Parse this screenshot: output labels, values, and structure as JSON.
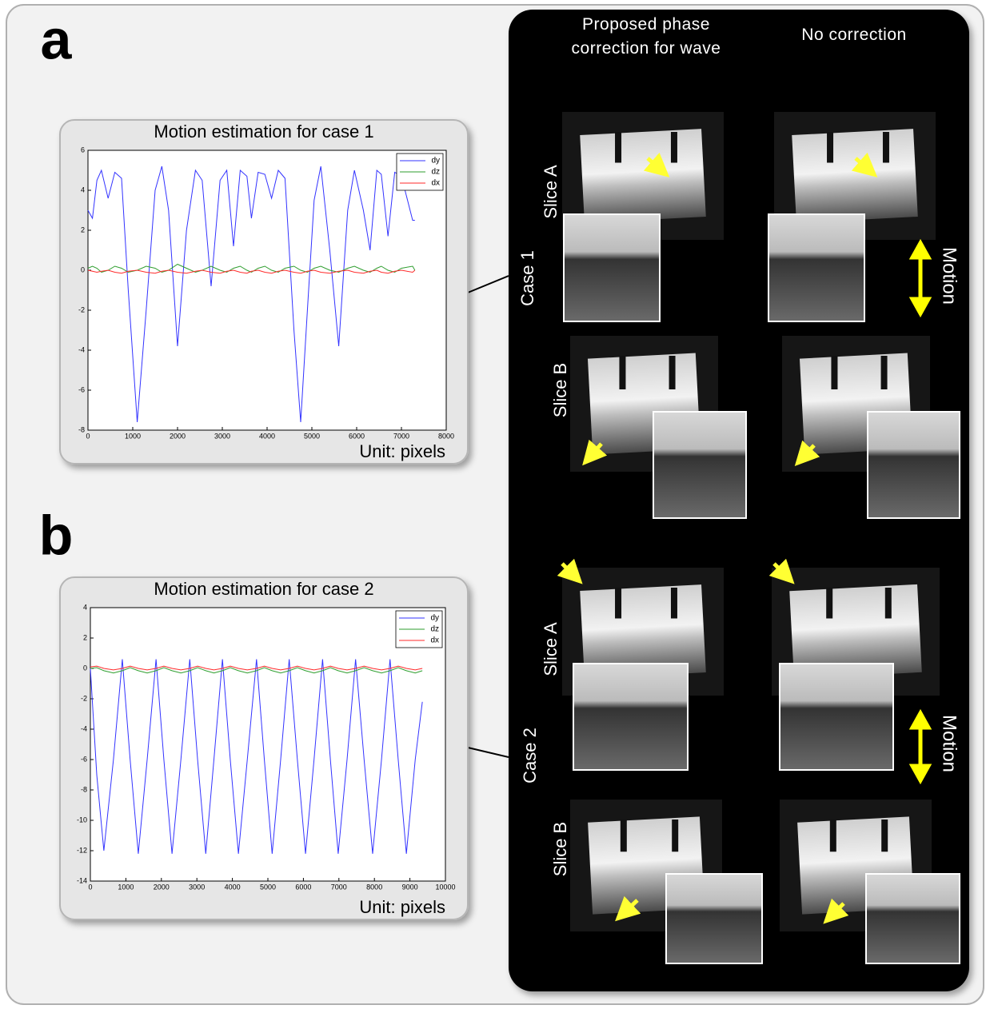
{
  "panel_labels": [
    "a",
    "b"
  ],
  "images": {
    "columns": [
      "Proposed phase correction for wave",
      "No correction"
    ],
    "cases": [
      {
        "label": "Case 1",
        "slices": [
          "Slice A",
          "Slice B"
        ],
        "motion": "Motion"
      },
      {
        "label": "Case 2",
        "slices": [
          "Slice A",
          "Slice B"
        ],
        "motion": "Motion"
      }
    ]
  },
  "chart_data": [
    {
      "type": "line",
      "title": "Motion estimation for case 1",
      "x_label": "Unit: pixels",
      "x": [
        0,
        100,
        200,
        300,
        450,
        600,
        750,
        900,
        1100,
        1300,
        1500,
        1650,
        1800,
        2000,
        2200,
        2400,
        2550,
        2750,
        2950,
        3100,
        3250,
        3400,
        3550,
        3650,
        3800,
        3950,
        4100,
        4250,
        4400,
        4600,
        4750,
        4900,
        5050,
        5200,
        5400,
        5600,
        5800,
        5950,
        6150,
        6300,
        6450,
        6550,
        6700,
        6850,
        7000,
        7250,
        7300
      ],
      "series": [
        {
          "name": "dy",
          "color": "#3333ff",
          "values": [
            3,
            2.6,
            4.5,
            5,
            3.6,
            4.9,
            4.6,
            -1,
            -7.6,
            -2,
            4,
            5.2,
            3,
            -3.8,
            2,
            5,
            4.5,
            -0.8,
            4.5,
            5,
            1.2,
            5,
            4.7,
            2.6,
            4.9,
            4.8,
            3.6,
            5,
            4.6,
            -3,
            -7.6,
            -2,
            3.5,
            5.2,
            1,
            -3.8,
            3,
            5,
            3,
            1,
            5,
            4.8,
            1.7,
            4.9,
            4.7,
            2.5,
            2.5
          ]
        },
        {
          "name": "dz",
          "color": "#2e9e2e",
          "values": [
            0.1,
            0.2,
            0.1,
            -0.1,
            0,
            0.2,
            0.1,
            -0.1,
            0,
            0.2,
            0.1,
            -0.1,
            0,
            0.3,
            0.1,
            -0.1,
            0,
            0.2,
            0,
            -0.1,
            0.1,
            0.2,
            0,
            -0.1,
            0.1,
            0.2,
            0,
            -0.1,
            0.1,
            0.2,
            0,
            -0.1,
            0.1,
            0.2,
            0,
            -0.1,
            0.1,
            0.2,
            0,
            -0.1,
            0.1,
            0.2,
            0,
            -0.1,
            0.1,
            0.2,
            0
          ]
        },
        {
          "name": "dx",
          "color": "#ff2a2a",
          "values": [
            0,
            -0.05,
            -0.1,
            -0.05,
            0,
            -0.1,
            -0.15,
            -0.05,
            0,
            -0.1,
            -0.15,
            -0.05,
            0,
            -0.1,
            -0.15,
            -0.05,
            0,
            -0.1,
            -0.15,
            -0.05,
            0,
            -0.1,
            -0.15,
            -0.05,
            0,
            -0.1,
            -0.15,
            -0.05,
            0,
            -0.1,
            -0.15,
            -0.05,
            0,
            -0.1,
            -0.15,
            -0.05,
            0,
            -0.1,
            -0.15,
            -0.05,
            0,
            -0.1,
            -0.15,
            -0.05,
            0,
            -0.1,
            0
          ]
        }
      ],
      "xlim": [
        0,
        8000
      ],
      "xticks": [
        0,
        1000,
        2000,
        3000,
        4000,
        5000,
        6000,
        7000,
        8000
      ],
      "ylim": [
        -8,
        6
      ],
      "yticks": [
        -8,
        -6,
        -4,
        -2,
        0,
        2,
        4,
        6
      ],
      "grid": false,
      "legend": "upper right"
    },
    {
      "type": "line",
      "title": "Motion estimation for case 2",
      "x_label": "Unit: pixels",
      "x": [
        0,
        180,
        380,
        650,
        900,
        1120,
        1350,
        1600,
        1850,
        2070,
        2300,
        2550,
        2800,
        3020,
        3250,
        3480,
        3720,
        3940,
        4170,
        4420,
        4680,
        4900,
        5120,
        5360,
        5600,
        5830,
        6060,
        6300,
        6540,
        6760,
        6980,
        7230,
        7470,
        7710,
        7950,
        8200,
        8440,
        8670,
        8900,
        9150,
        9350
      ],
      "series": [
        {
          "name": "dy",
          "color": "#3333ff",
          "values": [
            0,
            -7,
            -12,
            -6,
            0.6,
            -6,
            -12.2,
            -6,
            0.6,
            -6,
            -12.2,
            -6,
            0.6,
            -6,
            -12.2,
            -6,
            0.6,
            -6,
            -12.2,
            -6,
            0.6,
            -6,
            -12.2,
            -6,
            0.6,
            -6,
            -12.2,
            -6,
            0.6,
            -6,
            -12.2,
            -6,
            0.6,
            -6,
            -12.2,
            -6,
            0.6,
            -6,
            -12.2,
            -6,
            -2.2
          ]
        },
        {
          "name": "dz",
          "color": "#2e9e2e",
          "values": [
            0,
            0.05,
            -0.15,
            -0.3,
            -0.15,
            0.05,
            -0.15,
            -0.3,
            -0.15,
            0.05,
            -0.15,
            -0.3,
            -0.15,
            0.05,
            -0.15,
            -0.3,
            -0.15,
            0.05,
            -0.15,
            -0.3,
            -0.15,
            0.05,
            -0.15,
            -0.3,
            -0.15,
            0.05,
            -0.15,
            -0.3,
            -0.15,
            0.05,
            -0.15,
            -0.3,
            -0.15,
            0.05,
            -0.15,
            -0.3,
            -0.15,
            0.05,
            -0.15,
            -0.3,
            -0.15
          ]
        },
        {
          "name": "dx",
          "color": "#ff2a2a",
          "values": [
            0.1,
            0.15,
            0,
            -0.1,
            0,
            0.15,
            0,
            -0.1,
            0,
            0.15,
            0,
            -0.1,
            0,
            0.15,
            0,
            -0.1,
            0,
            0.15,
            0,
            -0.1,
            0,
            0.15,
            0,
            -0.1,
            0,
            0.15,
            0,
            -0.1,
            0,
            0.15,
            0,
            -0.1,
            0,
            0.15,
            0,
            -0.1,
            0,
            0.15,
            0,
            -0.1,
            0
          ]
        }
      ],
      "xlim": [
        0,
        10000
      ],
      "xticks": [
        0,
        1000,
        2000,
        3000,
        4000,
        5000,
        6000,
        7000,
        8000,
        9000,
        10000
      ],
      "ylim": [
        -14,
        4
      ],
      "yticks": [
        -14,
        -12,
        -10,
        -8,
        -6,
        -4,
        -2,
        0,
        2,
        4
      ],
      "grid": false,
      "legend": "upper right"
    }
  ]
}
